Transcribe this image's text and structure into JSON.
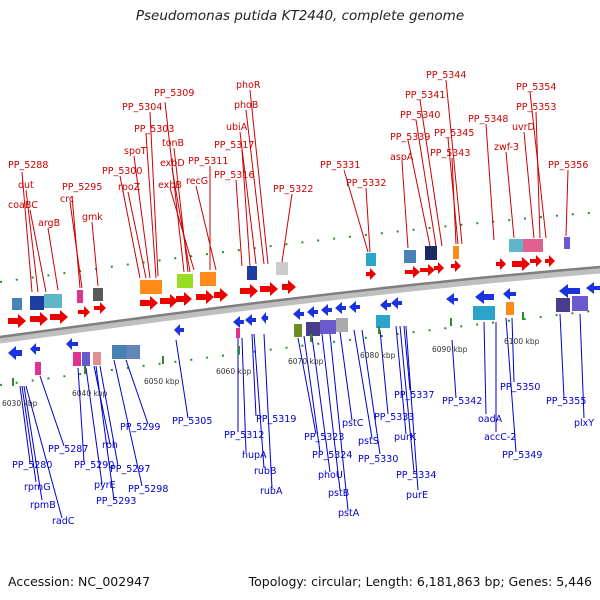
{
  "title": "Pseudomonas putida KT2440, complete genome",
  "footer": {
    "accession": "Accession: NC_002947",
    "summary": "Topology: circular; Length: 6,181,863 bp; Genes: 5,446"
  },
  "scale_labels": [
    "6030 kbp",
    "6040 kbp",
    "6050 kbp",
    "6060 kbp",
    "6070 kbp",
    "6080 kbp",
    "6090 kbp",
    "6100 kbp"
  ],
  "top_labels": [
    "PP_5288",
    "dut",
    "coaBC",
    "argB",
    "PP_5295",
    "crc",
    "gmk",
    "PP_5300",
    "rpoZ",
    "spoT",
    "PP_5303",
    "PP_5304",
    "PP_5309",
    "tonB",
    "exbD",
    "exbB",
    "PP_5311",
    "recG",
    "phoR",
    "phoB",
    "ubiA",
    "PP_5317",
    "PP_5316",
    "PP_5322",
    "PP_5331",
    "PP_5332",
    "PP_5344",
    "PP_5341",
    "PP_5340",
    "PP_5339",
    "PP_5345",
    "aspA",
    "PP_5343",
    "PP_5348",
    "PP_5354",
    "PP_5353",
    "uvrD",
    "zwf-3",
    "PP_5356"
  ],
  "bottom_labels": [
    "6030 kbp",
    "PP_5280",
    "rpmG",
    "rpmB",
    "radC",
    "PP_5287",
    "PP_5290",
    "rph",
    "pyrE",
    "PP_5293",
    "PP_5297",
    "PP_5298",
    "PP_5299",
    "PP_5305",
    "PP_5312",
    "hupA",
    "PP_5319",
    "rubB",
    "rubA",
    "PP_5323",
    "PP_5324",
    "phoU",
    "pstB",
    "pstA",
    "pstC",
    "pstS",
    "PP_5330",
    "PP_5333",
    "purK",
    "PP_5334",
    "PP_5337",
    "purE",
    "PP_5342",
    "oadA",
    "accC-2",
    "PP_5349",
    "PP_5350",
    "PP_5355",
    "plxY"
  ]
}
